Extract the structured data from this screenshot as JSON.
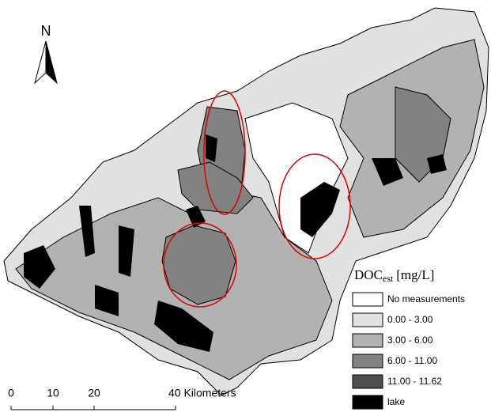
{
  "north_label": "N",
  "legend": {
    "title": "DOC",
    "title_subscript": "est",
    "title_unit": "[mg/L]",
    "items": [
      {
        "label": "No measurements",
        "color": "#ffffff"
      },
      {
        "label": "0.00 - 3.00",
        "color": "#e1e1e1"
      },
      {
        "label": "3.00 - 6.00",
        "color": "#b2b2b2"
      },
      {
        "label": "6.00 - 11.00",
        "color": "#828282"
      },
      {
        "label": "11.00 - 11.62",
        "color": "#4e4e4e"
      },
      {
        "label": "lake",
        "color": "#000000"
      }
    ]
  },
  "scale_bar": {
    "labels": [
      "0",
      "10",
      "20",
      "40 Kilometers"
    ]
  }
}
